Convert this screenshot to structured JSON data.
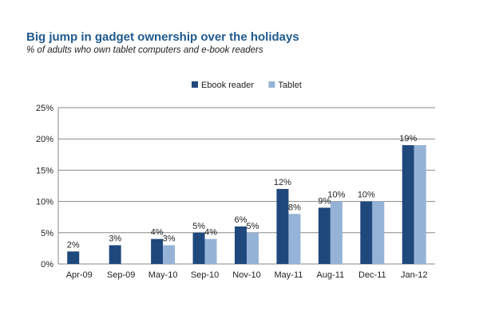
{
  "chart_data": {
    "type": "bar",
    "title": "Big jump in gadget ownership over the holidays",
    "subtitle": "% of adults who own tablet computers and e-book readers",
    "categories": [
      "Apr-09",
      "Sep-09",
      "May-10",
      "Sep-10",
      "Nov-10",
      "May-11",
      "Aug-11",
      "Dec-11",
      "Jan-12"
    ],
    "series": [
      {
        "name": "Ebook reader",
        "color": "#1f497d",
        "values": [
          2,
          3,
          4,
          5,
          6,
          12,
          9,
          10,
          19
        ],
        "labels": [
          "2%",
          "3%",
          "4%",
          "5%",
          "6%",
          "12%",
          "9%",
          "10%",
          "19%"
        ]
      },
      {
        "name": "Tablet",
        "color": "#95b3d7",
        "values": [
          null,
          null,
          3,
          4,
          5,
          8,
          10,
          10,
          19
        ],
        "labels": [
          null,
          null,
          "3%",
          "4%",
          "5%",
          "8%",
          "10%",
          null,
          null
        ]
      }
    ],
    "ylim": [
      0,
      25
    ],
    "yticks": [
      "0%",
      "5%",
      "10%",
      "15%",
      "20%",
      "25%"
    ],
    "grid": true,
    "legend": "top"
  }
}
